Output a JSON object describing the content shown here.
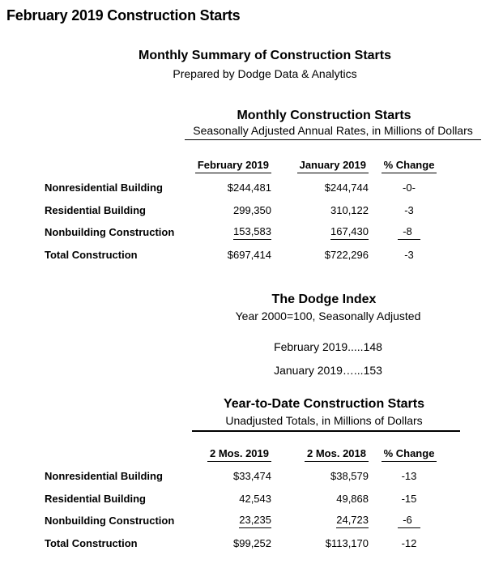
{
  "page": {
    "title": "February 2019 Construction Starts",
    "summary_heading": "Monthly Summary of Construction Starts",
    "summary_subheading": "Prepared by Dodge Data & Analytics",
    "text_color": "#000000",
    "background_color": "#ffffff"
  },
  "monthly_table": {
    "title": "Monthly Construction Starts",
    "subtitle": "Seasonally Adjusted Annual Rates, in Millions of Dollars",
    "columns": [
      "February 2019",
      "January 2019",
      "% Change"
    ],
    "rows": [
      {
        "label": "Nonresidential Building",
        "col1": "$244,481",
        "col2": "$244,744",
        "change": "-0-",
        "underlined": false
      },
      {
        "label": "Residential Building",
        "col1": "299,350",
        "col2": "310,122",
        "change": "-3",
        "underlined": false
      },
      {
        "label": "Nonbuilding Construction",
        "col1": "153,583",
        "col2": "167,430",
        "change": "-8",
        "underlined": true
      },
      {
        "label": "Total Construction",
        "col1": "$697,414",
        "col2": "$722,296",
        "change": "-3",
        "underlined": false
      }
    ]
  },
  "dodge_index": {
    "title": "The Dodge Index",
    "subtitle": "Year 2000=100, Seasonally Adjusted",
    "lines": [
      "February 2019.....148",
      "January 2019…...153"
    ]
  },
  "ytd_table": {
    "title": "Year-to-Date Construction Starts",
    "subtitle": "Unadjusted Totals, in Millions of Dollars",
    "columns": [
      "2 Mos. 2019",
      "2 Mos. 2018",
      "% Change"
    ],
    "rows": [
      {
        "label": "Nonresidential Building",
        "col1": "$33,474",
        "col2": "$38,579",
        "change": "-13",
        "underlined": false
      },
      {
        "label": "Residential Building",
        "col1": "42,543",
        "col2": "49,868",
        "change": "-15",
        "underlined": false
      },
      {
        "label": "Nonbuilding Construction",
        "col1": "23,235",
        "col2": "24,723",
        "change": "-6",
        "underlined": true
      },
      {
        "label": "Total Construction",
        "col1": "$99,252",
        "col2": "$113,170",
        "change": "-12",
        "underlined": false
      }
    ]
  }
}
